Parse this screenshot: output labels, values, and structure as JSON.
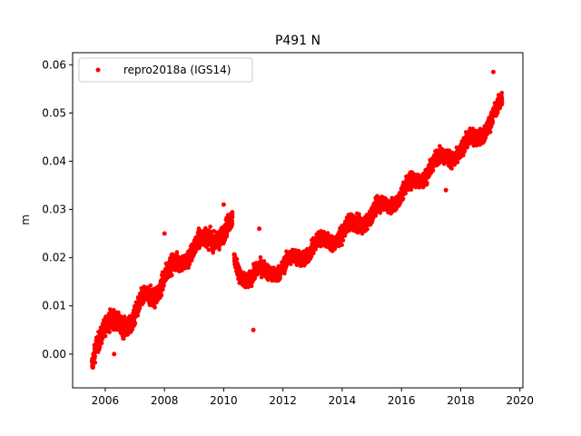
{
  "chart_data": {
    "type": "scatter",
    "title": "P491 N",
    "xlabel": "",
    "ylabel": "m",
    "xlim": [
      2004.9,
      2020.1
    ],
    "ylim": [
      -0.007,
      0.0625
    ],
    "xticks": [
      2006,
      2008,
      2010,
      2012,
      2014,
      2016,
      2018,
      2020
    ],
    "yticks": [
      0.0,
      0.01,
      0.02,
      0.03,
      0.04,
      0.05,
      0.06
    ],
    "ytick_labels": [
      "0.00",
      "0.01",
      "0.02",
      "0.03",
      "0.04",
      "0.05",
      "0.06"
    ],
    "grid": false,
    "legend_position": "top-left",
    "marker_color": "#ff0000",
    "series": [
      {
        "name": "repro2018a (IGS14)",
        "segments": [
          {
            "x_start": 2005.55,
            "x_end": 2010.3,
            "trend": [
              [
                2005.55,
                -0.002
              ],
              [
                2005.7,
                0.003
              ],
              [
                2006.0,
                0.006
              ],
              [
                2006.5,
                0.006
              ],
              [
                2006.9,
                0.007
              ],
              [
                2007.3,
                0.011
              ],
              [
                2007.7,
                0.013
              ],
              [
                2008.0,
                0.016
              ],
              [
                2008.5,
                0.019
              ],
              [
                2009.0,
                0.022
              ],
              [
                2009.5,
                0.024
              ],
              [
                2010.0,
                0.025
              ],
              [
                2010.3,
                0.027
              ]
            ],
            "scatter": 0.0022
          },
          {
            "x_start": 2010.35,
            "x_end": 2019.4,
            "trend": [
              [
                2010.35,
                0.019
              ],
              [
                2010.6,
                0.016
              ],
              [
                2011.0,
                0.0165
              ],
              [
                2011.5,
                0.017
              ],
              [
                2012.0,
                0.018
              ],
              [
                2012.5,
                0.02
              ],
              [
                2013.0,
                0.022
              ],
              [
                2013.5,
                0.0235
              ],
              [
                2014.0,
                0.025
              ],
              [
                2014.5,
                0.027
              ],
              [
                2015.0,
                0.029
              ],
              [
                2015.5,
                0.031
              ],
              [
                2016.0,
                0.033
              ],
              [
                2016.5,
                0.036
              ],
              [
                2017.0,
                0.039
              ],
              [
                2017.5,
                0.041
              ],
              [
                2018.0,
                0.042
              ],
              [
                2018.5,
                0.045
              ],
              [
                2019.0,
                0.048
              ],
              [
                2019.4,
                0.052
              ]
            ],
            "scatter": 0.0018
          }
        ],
        "outliers": [
          [
            2011.0,
            0.005
          ],
          [
            2019.1,
            0.0585
          ],
          [
            2008.0,
            0.025
          ],
          [
            2011.2,
            0.026
          ],
          [
            2006.3,
            0.0
          ],
          [
            2010.0,
            0.031
          ],
          [
            2017.5,
            0.034
          ]
        ]
      }
    ]
  }
}
